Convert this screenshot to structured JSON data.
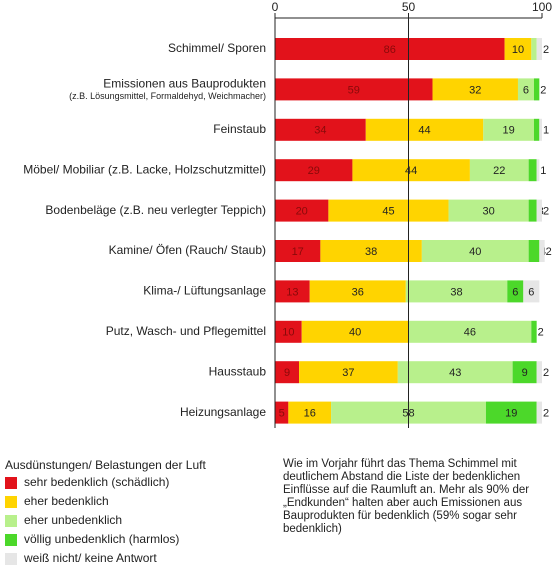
{
  "chart_data": {
    "type": "stacked_barh",
    "categories": [
      "Schimmel/ Sporen",
      "Emissionen aus Bauprodukten",
      "Feinstaub",
      "Möbel/ Mobiliar (z.B. Lacke, Holzschutzmittel)",
      "Bodenbeläge (z.B. neu verlegter Teppich)",
      "Kamine/ Öfen (Rauch/ Staub)",
      "Klima-/ Lüftungsanlage",
      "Putz, Wasch- und Pflegemittel",
      "Hausstaub",
      "Heizungsanlage"
    ],
    "category_notes": [
      null,
      "(z.B. Lösungsmittel, Formaldehyd, Weichmacher)",
      null,
      null,
      null,
      null,
      null,
      null,
      null,
      null
    ],
    "xlim": [
      0,
      100
    ],
    "xticks": [
      0,
      50,
      100
    ],
    "legend_title": "Ausdünstungen/ Belastungen der Luft",
    "series": [
      {
        "name": "sehr bedenklich (schädlich)",
        "color": "#e2121b",
        "text_color": "#8a0a0a",
        "values": [
          86,
          59,
          34,
          29,
          20,
          17,
          13,
          10,
          9,
          5
        ],
        "value_labels": [
          "86",
          "59",
          "34",
          "29",
          "20",
          "17",
          "13",
          "10",
          "9",
          "5"
        ]
      },
      {
        "name": "eher bedenklich",
        "color": "#ffd400",
        "text_color": "#222222",
        "values": [
          10,
          32,
          44,
          44,
          45,
          38,
          36,
          40,
          37,
          16
        ],
        "value_labels": [
          "10",
          "32",
          "44",
          "44",
          "45",
          "38",
          "36",
          "40",
          "37",
          "16"
        ]
      },
      {
        "name": "eher unbedenklich",
        "color": "#b8f08c",
        "text_color": "#222222",
        "values": [
          2,
          6,
          19,
          22,
          30,
          40,
          38,
          46,
          43,
          58
        ],
        "value_labels": [
          null,
          "6",
          "19",
          "22",
          "30",
          "40",
          "38",
          "46",
          "43",
          "58"
        ]
      },
      {
        "name": "völlig unbedenklich (harmlos)",
        "color": "#4cd82a",
        "text_color": "#222222",
        "values": [
          null,
          2,
          2,
          3,
          3,
          4,
          6,
          2,
          9,
          19
        ],
        "value_labels": [
          null,
          "2",
          null,
          null,
          "3",
          "4",
          "6",
          "2",
          "9",
          "19"
        ]
      },
      {
        "name": "weiß nicht/ keine Antwort",
        "color": "#e6e6e6",
        "text_color": "#222222",
        "values": [
          2,
          null,
          1,
          1,
          2,
          2,
          6,
          null,
          2,
          2
        ],
        "value_labels": [
          "2",
          null,
          "1",
          "1",
          "2",
          "2",
          "6",
          null,
          "2",
          "2"
        ]
      }
    ],
    "note": "Wie im Vorjahr führt das Thema Schimmel mit deutlichem Abstand die Liste der bedenklichen Einflüsse auf die Raumluft an. Mehr als 90% der „Endkunden“ halten aber auch Emissionen aus Bauprodukten für bedenklich (59% sogar sehr bedenklich)"
  }
}
